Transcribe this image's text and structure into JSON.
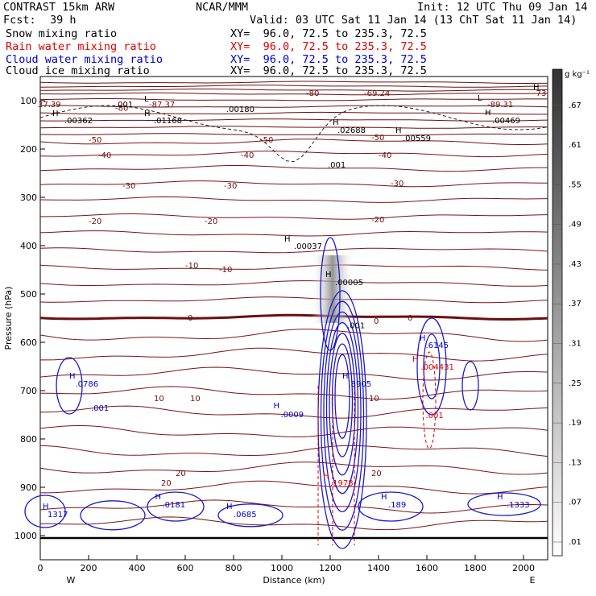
{
  "header": {
    "model": "CONTRAST 15km ARW",
    "org": "NCAR/MMM",
    "init": "Init: 12 UTC Thu 09 Jan 14",
    "fcst_label": "Fcst:",
    "fcst_value": "39 h",
    "valid": "Valid: 03 UTC Sat 11 Jan 14 (13 ChT Sat 11 Jan 14)"
  },
  "fields": [
    {
      "name": "Snow mixing ratio",
      "xy": "XY=  96.0, 72.5 to 235.3, 72.5",
      "color": "#000000"
    },
    {
      "name": "Rain water mixing ratio",
      "xy": "XY=  96.0, 72.5 to 235.3, 72.5",
      "color": "#e00000"
    },
    {
      "name": "Cloud water mixing ratio",
      "xy": "XY=  96.0, 72.5 to 235.3, 72.5",
      "color": "#0000d0"
    },
    {
      "name": "Cloud ice mixing ratio",
      "xy": "XY=  96.0, 72.5 to 235.3, 72.5",
      "color": "#000000"
    }
  ],
  "chart_data": {
    "type": "contour",
    "xlabel": "Distance (km)",
    "ylabel": "Pressure (hPa)",
    "xlim": [
      0,
      2100
    ],
    "ylim": [
      1050,
      50
    ],
    "x_ticks": [
      0,
      200,
      400,
      600,
      800,
      1000,
      1200,
      1400,
      1600,
      1800,
      2000
    ],
    "y_ticks": [
      100,
      200,
      300,
      400,
      500,
      600,
      700,
      800,
      900,
      1000
    ],
    "left_end_label": "W",
    "right_end_label": "E",
    "colorbar": {
      "unit": "g kg⁻¹",
      "labels": [
        ".01",
        ".07",
        ".13",
        ".19",
        ".25",
        ".31",
        ".37",
        ".43",
        ".49",
        ".55",
        ".61",
        ".67"
      ]
    },
    "temperature_labels": [
      {
        "text": "-80",
        "x": 1100,
        "p": 83
      },
      {
        "text": "-80",
        "x": 310,
        "p": 114
      },
      {
        "text": "-69.24",
        "x": 1340,
        "p": 83
      },
      {
        "text": "-73",
        "x": 2040,
        "p": 83
      },
      {
        "text": "-87.37",
        "x": 450,
        "p": 107
      },
      {
        "text": "37.39",
        "x": -10,
        "p": 107
      },
      {
        "text": "-89.31",
        "x": 1850,
        "p": 107
      },
      {
        "text": "-50",
        "x": 200,
        "p": 180
      },
      {
        "text": "-50",
        "x": 910,
        "p": 180
      },
      {
        "text": "-50",
        "x": 1370,
        "p": 175
      },
      {
        "text": "-40",
        "x": 240,
        "p": 212
      },
      {
        "text": "-40",
        "x": 830,
        "p": 212
      },
      {
        "text": "-40",
        "x": 1400,
        "p": 212
      },
      {
        "text": "-30",
        "x": 340,
        "p": 275
      },
      {
        "text": "-30",
        "x": 760,
        "p": 275
      },
      {
        "text": "-30",
        "x": 1450,
        "p": 270
      },
      {
        "text": "-20",
        "x": 200,
        "p": 348
      },
      {
        "text": "-20",
        "x": 680,
        "p": 348
      },
      {
        "text": "-20",
        "x": 1370,
        "p": 345
      },
      {
        "text": "-10",
        "x": 600,
        "p": 440
      },
      {
        "text": "-10",
        "x": 740,
        "p": 448
      },
      {
        "text": "0",
        "x": 610,
        "p": 548
      },
      {
        "text": "0",
        "x": 1380,
        "p": 555
      },
      {
        "text": "0",
        "x": 1520,
        "p": 548
      },
      {
        "text": "10",
        "x": 470,
        "p": 715
      },
      {
        "text": "10",
        "x": 620,
        "p": 715
      },
      {
        "text": "10",
        "x": 1360,
        "p": 715
      },
      {
        "text": "20",
        "x": 560,
        "p": 870
      },
      {
        "text": "20",
        "x": 500,
        "p": 890
      },
      {
        "text": "20",
        "x": 1370,
        "p": 870
      }
    ],
    "maxima_labels": [
      {
        "text": "H",
        "x": 50,
        "p": 125,
        "color": "#000000"
      },
      {
        "text": ".00362",
        "x": 100,
        "p": 140,
        "color": "#000000"
      },
      {
        "text": ".001",
        "x": 310,
        "p": 107,
        "color": "#000000"
      },
      {
        "text": "L",
        "x": 430,
        "p": 95,
        "color": "#000000"
      },
      {
        "text": "H",
        "x": 430,
        "p": 125,
        "color": "#000000"
      },
      {
        "text": ".01168",
        "x": 470,
        "p": 140,
        "color": "#000000"
      },
      {
        "text": ".00180",
        "x": 770,
        "p": 117,
        "color": "#000000"
      },
      {
        "text": "H",
        "x": 1210,
        "p": 143,
        "color": "#000000"
      },
      {
        "text": ".02688",
        "x": 1230,
        "p": 160,
        "color": "#000000"
      },
      {
        "text": "H",
        "x": 1470,
        "p": 160,
        "color": "#000000"
      },
      {
        "text": ".00559",
        "x": 1500,
        "p": 177,
        "color": "#000000"
      },
      {
        "text": ".001",
        "x": 1190,
        "p": 232,
        "color": "#000000"
      },
      {
        "text": "L",
        "x": 1810,
        "p": 93,
        "color": "#000000"
      },
      {
        "text": "H",
        "x": 1840,
        "p": 123,
        "color": "#000000"
      },
      {
        "text": ".00469",
        "x": 1870,
        "p": 140,
        "color": "#000000"
      },
      {
        "text": "H",
        "x": 2040,
        "p": 71,
        "color": "#000000"
      },
      {
        "text": "H",
        "x": 1010,
        "p": 385,
        "color": "#000000"
      },
      {
        "text": ".00037",
        "x": 1050,
        "p": 400,
        "color": "#000000"
      },
      {
        "text": "H",
        "x": 1180,
        "p": 458,
        "color": "#000000"
      },
      {
        "text": ".00005",
        "x": 1220,
        "p": 475,
        "color": "#000000"
      },
      {
        "text": ".001",
        "x": 1270,
        "p": 564,
        "color": "#000000"
      },
      {
        "text": "H",
        "x": 120,
        "p": 668,
        "color": "#0000d0"
      },
      {
        "text": ".0786",
        "x": 145,
        "p": 685,
        "color": "#0000d0"
      },
      {
        "text": ".001",
        "x": 210,
        "p": 735,
        "color": "#0000d0"
      },
      {
        "text": "H",
        "x": 965,
        "p": 730,
        "color": "#0000d0"
      },
      {
        "text": ".0009",
        "x": 995,
        "p": 748,
        "color": "#0000d0"
      },
      {
        "text": "H",
        "x": 1250,
        "p": 668,
        "color": "#0000d0"
      },
      {
        "text": ".8905",
        "x": 1275,
        "p": 685,
        "color": "#0000d0"
      },
      {
        "text": "H",
        "x": 1570,
        "p": 590,
        "color": "#0000d0"
      },
      {
        "text": ".6145",
        "x": 1595,
        "p": 605,
        "color": "#0000d0"
      },
      {
        "text": "H",
        "x": 1540,
        "p": 633,
        "color": "#e00000"
      },
      {
        "text": ".004431",
        "x": 1575,
        "p": 650,
        "color": "#e00000"
      },
      {
        "text": ".001",
        "x": 1595,
        "p": 750,
        "color": "#e00000"
      },
      {
        "text": "H",
        "x": 1170,
        "p": 875,
        "color": "#e00000"
      },
      {
        "text": ".1978",
        "x": 1200,
        "p": 890,
        "color": "#e00000"
      },
      {
        "text": "H",
        "x": 10,
        "p": 938,
        "color": "#0000d0"
      },
      {
        "text": "1317",
        "x": 30,
        "p": 955,
        "color": "#0000d0"
      },
      {
        "text": "H",
        "x": 475,
        "p": 918,
        "color": "#0000d0"
      },
      {
        "text": ".0181",
        "x": 505,
        "p": 935,
        "color": "#0000d0"
      },
      {
        "text": "H",
        "x": 770,
        "p": 938,
        "color": "#0000d0"
      },
      {
        "text": ".0685",
        "x": 800,
        "p": 955,
        "color": "#0000d0"
      },
      {
        "text": "H",
        "x": 1410,
        "p": 918,
        "color": "#0000d0"
      },
      {
        "text": ".189",
        "x": 1440,
        "p": 935,
        "color": "#0000d0"
      },
      {
        "text": "H",
        "x": 1890,
        "p": 918,
        "color": "#0000d0"
      },
      {
        "text": ".1333",
        "x": 1930,
        "p": 935,
        "color": "#0000d0"
      }
    ],
    "isotherm_levels_c": [
      -80,
      -70,
      -60,
      -50,
      -40,
      -30,
      -20,
      -10,
      0,
      10,
      20,
      30
    ],
    "freezing_level_hpa": 548,
    "surface_pressure_hpa": 1005
  }
}
